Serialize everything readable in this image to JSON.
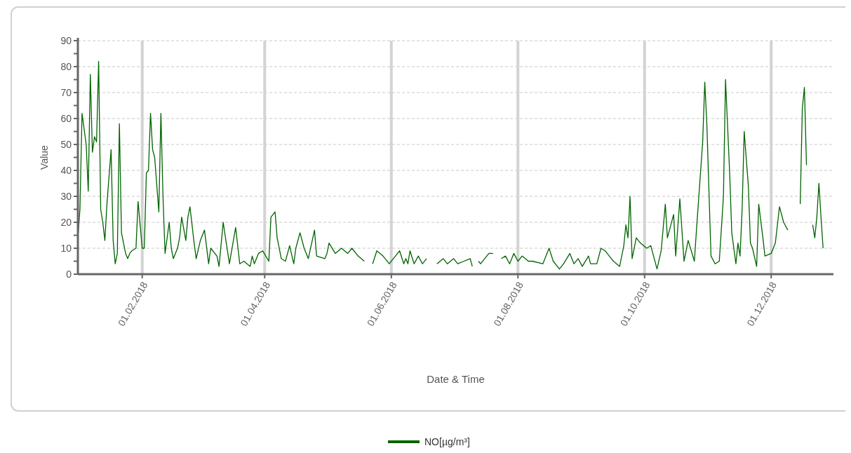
{
  "chart_data": {
    "type": "line",
    "xlabel": "Date & Time",
    "ylabel": "Value",
    "xlim": [
      "2018-01-01",
      "2018-12-31"
    ],
    "xticks": [
      {
        "value": "2018-02-01",
        "label": "01.02.2018"
      },
      {
        "value": "2018-04-01",
        "label": "01.04.2018"
      },
      {
        "value": "2018-06-01",
        "label": "01.06.2018"
      },
      {
        "value": "2018-08-01",
        "label": "01.08.2018"
      },
      {
        "value": "2018-10-01",
        "label": "01.10.2018"
      },
      {
        "value": "2018-12-01",
        "label": "01.12.2018"
      }
    ],
    "ylim": [
      0,
      90
    ],
    "yticks": [
      0,
      10,
      20,
      30,
      40,
      50,
      60,
      70,
      80,
      90
    ],
    "grid": true,
    "legend": "bottom",
    "line_style": "solid",
    "marker": "none",
    "series": [
      {
        "name": "NO[µg/m³]",
        "color": "#006400",
        "x": [
          "2018-01-01",
          "2018-01-02",
          "2018-01-03",
          "2018-01-05",
          "2018-01-06",
          "2018-01-07",
          "2018-01-08",
          "2018-01-09",
          "2018-01-10",
          "2018-01-11",
          "2018-01-12",
          "2018-01-13",
          "2018-01-14",
          "2018-01-15",
          "2018-01-17",
          "2018-01-18",
          "2018-01-19",
          "2018-01-20",
          "2018-01-21",
          "2018-01-22",
          "2018-01-24",
          "2018-01-25",
          "2018-01-26",
          "2018-01-27",
          "2018-01-29",
          "2018-01-30",
          "2018-02-01",
          "2018-02-02",
          "2018-02-03",
          "2018-02-04",
          "2018-02-05",
          "2018-02-06",
          "2018-02-07",
          "2018-02-09",
          "2018-02-10",
          "2018-02-11",
          "2018-02-12",
          "2018-02-14",
          "2018-02-15",
          "2018-02-16",
          "2018-02-18",
          "2018-02-19",
          "2018-02-20",
          "2018-02-22",
          "2018-02-23",
          "2018-02-24",
          "2018-02-26",
          "2018-02-27",
          "2018-03-01",
          "2018-03-03",
          "2018-03-05",
          "2018-03-06",
          "2018-03-09",
          "2018-03-10",
          "2018-03-12",
          "2018-03-15",
          "2018-03-18",
          "2018-03-20",
          "2018-03-22",
          "2018-03-25",
          "2018-03-26",
          "2018-03-27",
          "2018-03-29",
          "2018-03-31",
          "2018-04-03",
          "2018-04-04",
          "2018-04-06",
          "2018-04-07",
          "2018-04-09",
          "2018-04-11",
          "2018-04-13",
          "2018-04-15",
          "2018-04-16",
          "2018-04-18",
          "2018-04-20",
          "2018-04-22",
          "2018-04-25",
          "2018-04-26",
          "2018-04-30",
          "2018-05-01",
          "2018-05-02",
          "2018-05-05",
          "2018-05-08",
          "2018-05-11",
          "2018-05-13",
          "2018-05-16",
          "2018-05-19",
          "2018-05-20",
          "2018-05-23",
          "2018-05-25",
          "2018-05-28",
          "2018-05-31",
          "2018-06-03",
          "2018-06-05",
          "2018-06-07",
          "2018-06-08",
          "2018-06-09",
          "2018-06-10",
          "2018-06-12",
          "2018-06-14",
          "2018-06-16",
          "2018-06-18",
          "2018-06-20",
          "2018-06-23",
          "2018-06-26",
          "2018-06-28",
          "2018-07-01",
          "2018-07-03",
          "2018-07-06",
          "2018-07-09",
          "2018-07-10",
          "2018-07-11",
          "2018-07-13",
          "2018-07-14",
          "2018-07-18",
          "2018-07-20",
          "2018-07-21",
          "2018-07-24",
          "2018-07-26",
          "2018-07-28",
          "2018-07-30",
          "2018-08-01",
          "2018-08-03",
          "2018-08-06",
          "2018-08-08",
          "2018-08-13",
          "2018-08-16",
          "2018-08-18",
          "2018-08-21",
          "2018-08-23",
          "2018-08-26",
          "2018-08-28",
          "2018-08-30",
          "2018-09-01",
          "2018-09-04",
          "2018-09-05",
          "2018-09-08",
          "2018-09-10",
          "2018-09-12",
          "2018-09-15",
          "2018-09-16",
          "2018-09-19",
          "2018-09-21",
          "2018-09-22",
          "2018-09-23",
          "2018-09-24",
          "2018-09-25",
          "2018-09-27",
          "2018-09-29",
          "2018-10-02",
          "2018-10-04",
          "2018-10-07",
          "2018-10-09",
          "2018-10-11",
          "2018-10-12",
          "2018-10-15",
          "2018-10-16",
          "2018-10-18",
          "2018-10-20",
          "2018-10-22",
          "2018-10-25",
          "2018-10-26",
          "2018-10-29",
          "2018-10-30",
          "2018-10-31",
          "2018-11-02",
          "2018-11-04",
          "2018-11-06",
          "2018-11-08",
          "2018-11-09",
          "2018-11-11",
          "2018-11-12",
          "2018-11-14",
          "2018-11-15",
          "2018-11-16",
          "2018-11-17",
          "2018-11-18",
          "2018-11-20",
          "2018-11-21",
          "2018-11-22",
          "2018-11-24",
          "2018-11-25",
          "2018-11-27",
          "2018-11-28",
          "2018-12-01",
          "2018-12-03",
          "2018-12-05",
          "2018-12-07",
          "2018-12-09",
          "2018-12-12",
          "2018-12-15",
          "2018-12-16",
          "2018-12-17",
          "2018-12-18",
          "2018-12-19",
          "2018-12-21",
          "2018-12-22",
          "2018-12-23",
          "2018-12-24",
          "2018-12-25",
          "2018-12-26"
        ],
        "values": [
          14,
          25,
          62,
          50,
          32,
          77,
          47,
          53,
          51,
          82,
          25,
          20,
          13,
          27,
          48,
          13,
          4,
          8,
          58,
          16,
          8,
          6,
          8,
          9,
          10,
          28,
          10,
          10,
          39,
          40,
          62,
          48,
          45,
          24,
          62,
          30,
          8,
          20,
          10,
          6,
          10,
          14,
          22,
          13,
          22,
          26,
          12,
          6,
          13,
          17,
          4,
          10,
          7,
          3,
          20,
          4,
          18,
          4,
          5,
          3,
          7,
          4,
          8,
          9,
          5,
          22,
          24,
          14,
          6,
          5,
          11,
          4,
          10,
          16,
          10,
          6,
          17,
          7,
          6,
          8,
          12,
          8,
          10,
          8,
          10,
          7,
          5,
          null,
          4,
          9,
          7,
          4,
          7,
          9,
          4,
          6,
          4,
          9,
          4,
          7,
          4,
          6,
          null,
          4,
          6,
          4,
          6,
          4,
          5,
          6,
          3,
          null,
          5,
          4,
          8,
          8,
          null,
          6,
          7,
          4,
          8,
          5,
          7,
          5,
          5,
          4,
          10,
          5,
          2,
          4,
          8,
          4,
          6,
          3,
          7,
          4,
          4,
          10,
          9,
          6,
          5,
          3,
          11,
          19,
          14,
          30,
          6,
          14,
          12,
          10,
          11,
          2,
          9,
          27,
          14,
          23,
          7,
          29,
          5,
          13,
          5,
          17,
          51,
          74,
          58,
          7,
          4,
          5,
          30,
          75,
          39,
          16,
          4,
          12,
          7,
          25,
          55,
          34,
          12,
          10,
          3,
          27,
          14,
          7,
          8,
          12,
          26,
          20,
          17,
          null,
          27,
          64,
          72,
          42,
          null,
          19,
          14,
          22,
          35,
          22,
          10
        ]
      }
    ]
  }
}
